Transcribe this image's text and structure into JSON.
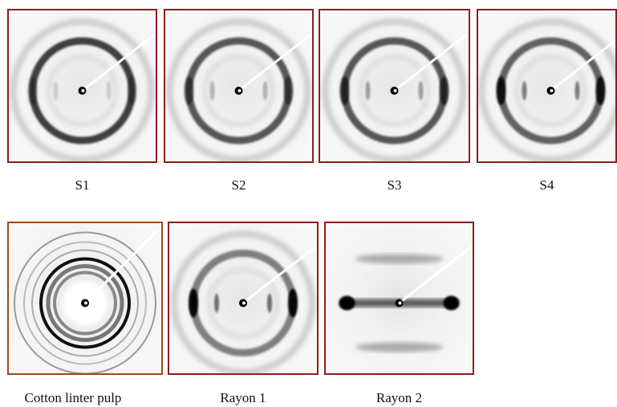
{
  "panels": [
    {
      "label": "S1"
    },
    {
      "label": "S2"
    },
    {
      "label": "S3"
    },
    {
      "label": "S4"
    },
    {
      "label": "Cotton linter pulp"
    },
    {
      "label": "Rayon 1"
    },
    {
      "label": "Rayon 2"
    }
  ]
}
